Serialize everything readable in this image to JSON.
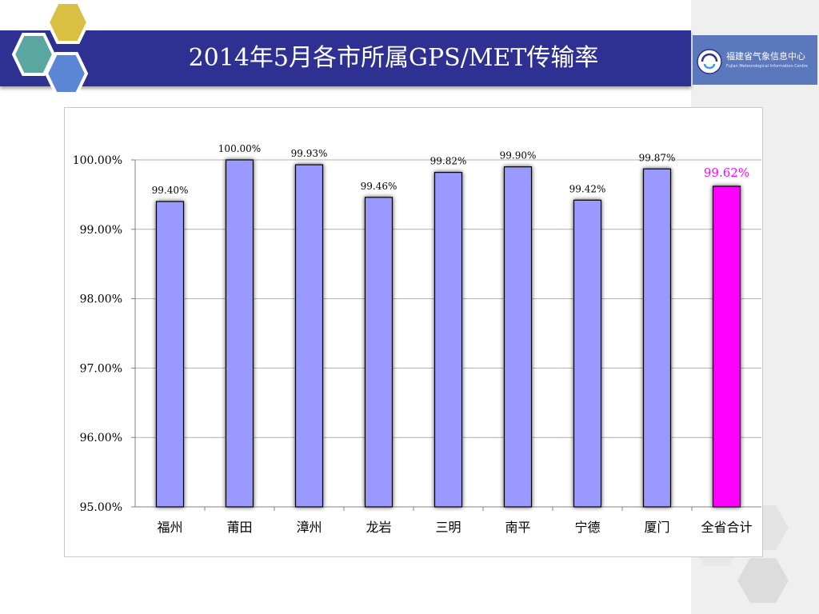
{
  "header": {
    "title": "2014年5月各市所属GPS/MET传输率"
  },
  "logo": {
    "name": "福建省气象信息中心",
    "subtitle": "Fujian Meteorological Information Centre"
  },
  "colors": {
    "header_bg": "#2e3192",
    "bar": "#9999ff",
    "bar_highlight": "#ff00ff",
    "label_highlight": "#ff00ff"
  },
  "chart_data": {
    "type": "bar",
    "categories": [
      "福州",
      "莆田",
      "漳州",
      "龙岩",
      "三明",
      "南平",
      "宁德",
      "厦门",
      "全省合计"
    ],
    "values": [
      99.4,
      100.0,
      99.93,
      99.46,
      99.82,
      99.9,
      99.42,
      99.87,
      99.62
    ],
    "data_labels": [
      "99.40%",
      "100.00%",
      "99.93%",
      "99.46%",
      "99.82%",
      "99.90%",
      "99.42%",
      "99.87%",
      "99.62%"
    ],
    "highlight_index": 8,
    "ylim": [
      95,
      100
    ],
    "yticks": [
      95,
      96,
      97,
      98,
      99,
      100
    ],
    "ytick_labels": [
      "95.00%",
      "96.00%",
      "97.00%",
      "98.00%",
      "99.00%",
      "100.00%"
    ],
    "title": "",
    "xlabel": "",
    "ylabel": "",
    "grid": true,
    "legend": "none"
  }
}
